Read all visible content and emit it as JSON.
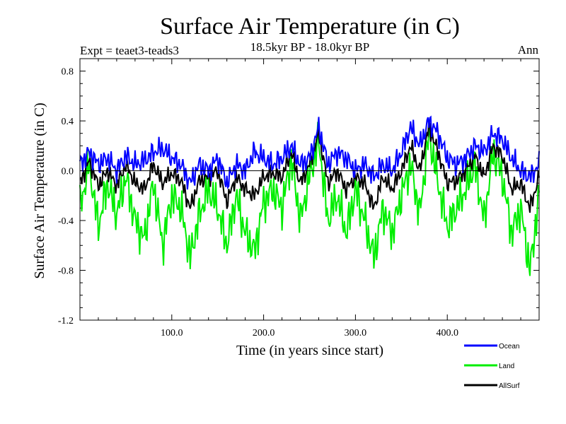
{
  "chart_data": {
    "type": "line",
    "title": "Surface Air Temperature (in C)",
    "subtitle": "18.5kyr BP - 18.0kyr BP",
    "left_label": "Expt = teaet3-teads3",
    "right_label": "Ann",
    "xlabel": "Time (in years since start)",
    "ylabel": "Surface Air Temperature (in C)",
    "xlim": [
      0,
      500
    ],
    "ylim": [
      -1.2,
      0.9
    ],
    "xticks": [
      {
        "value": 100,
        "label": "100.0"
      },
      {
        "value": 200,
        "label": "200.0"
      },
      {
        "value": 300,
        "label": "300.0"
      },
      {
        "value": 400,
        "label": "400.0"
      }
    ],
    "yticks": [
      {
        "value": 0.8,
        "label": "0.8"
      },
      {
        "value": 0.4,
        "label": "0.4"
      },
      {
        "value": 0.0,
        "label": "0.0"
      },
      {
        "value": -0.4,
        "label": "-0.4"
      },
      {
        "value": -0.8,
        "label": "-0.8"
      },
      {
        "value": -1.2,
        "label": "-1.2"
      }
    ],
    "zero_line": 0,
    "series": [
      {
        "name": "Ocean",
        "color": "#0000ff",
        "x": [
          0,
          10,
          20,
          30,
          40,
          50,
          60,
          70,
          80,
          90,
          100,
          110,
          120,
          130,
          140,
          150,
          160,
          170,
          180,
          190,
          200,
          210,
          220,
          230,
          240,
          250,
          260,
          270,
          280,
          290,
          300,
          310,
          320,
          330,
          340,
          350,
          360,
          370,
          380,
          390,
          400,
          410,
          420,
          430,
          440,
          450,
          460,
          470,
          480,
          490,
          500
        ],
        "values": [
          0.05,
          0.15,
          0.05,
          0.1,
          0.0,
          0.12,
          0.05,
          0.08,
          0.15,
          0.18,
          0.1,
          0.05,
          -0.1,
          0.05,
          0.0,
          0.1,
          -0.1,
          0.05,
          0.0,
          0.15,
          0.1,
          0.05,
          0.1,
          0.2,
          0.05,
          0.1,
          0.35,
          0.05,
          0.15,
          0.1,
          0.0,
          0.05,
          -0.05,
          0.05,
          0.0,
          0.15,
          0.35,
          0.2,
          0.4,
          0.3,
          0.1,
          0.05,
          0.1,
          0.2,
          0.15,
          0.3,
          0.25,
          0.1,
          0.0,
          -0.05,
          0.05
        ]
      },
      {
        "name": "Land",
        "color": "#00ee00",
        "x": [
          0,
          10,
          20,
          30,
          40,
          50,
          60,
          70,
          80,
          90,
          100,
          110,
          120,
          130,
          140,
          150,
          160,
          170,
          180,
          190,
          200,
          210,
          220,
          230,
          240,
          250,
          260,
          270,
          280,
          290,
          300,
          310,
          320,
          330,
          340,
          350,
          360,
          370,
          380,
          390,
          400,
          410,
          420,
          430,
          440,
          450,
          460,
          470,
          480,
          490,
          500
        ],
        "values": [
          -0.3,
          0.05,
          -0.45,
          -0.1,
          -0.35,
          -0.05,
          -0.4,
          -0.55,
          -0.1,
          -0.6,
          -0.2,
          -0.3,
          -0.7,
          -0.35,
          -0.15,
          -0.3,
          -0.6,
          -0.2,
          -0.5,
          -0.65,
          -0.25,
          -0.15,
          -0.3,
          0.1,
          -0.4,
          -0.05,
          0.25,
          -0.4,
          -0.2,
          -0.5,
          -0.15,
          -0.4,
          -0.7,
          -0.3,
          -0.5,
          -0.2,
          0.05,
          -0.35,
          0.3,
          -0.1,
          -0.45,
          -0.3,
          -0.15,
          0.05,
          -0.4,
          0.15,
          -0.05,
          -0.5,
          -0.3,
          -0.8,
          -0.2
        ]
      },
      {
        "name": "AllSurf",
        "color": "#000000",
        "x": [
          0,
          10,
          20,
          30,
          40,
          50,
          60,
          70,
          80,
          90,
          100,
          110,
          120,
          130,
          140,
          150,
          160,
          170,
          180,
          190,
          200,
          210,
          220,
          230,
          240,
          250,
          260,
          270,
          280,
          290,
          300,
          310,
          320,
          330,
          340,
          350,
          360,
          370,
          380,
          390,
          400,
          410,
          420,
          430,
          440,
          450,
          460,
          470,
          480,
          490,
          500
        ],
        "values": [
          -0.1,
          0.08,
          -0.12,
          0.0,
          -0.12,
          0.05,
          -0.1,
          -0.15,
          0.05,
          -0.1,
          -0.02,
          -0.08,
          -0.3,
          -0.08,
          -0.05,
          0.0,
          -0.25,
          -0.05,
          -0.15,
          -0.2,
          -0.05,
          -0.02,
          -0.05,
          0.15,
          -0.1,
          0.05,
          0.3,
          -0.1,
          0.0,
          -0.15,
          -0.05,
          -0.1,
          -0.3,
          -0.05,
          -0.15,
          0.0,
          0.2,
          0.0,
          0.35,
          0.15,
          -0.1,
          -0.08,
          0.0,
          0.12,
          -0.05,
          0.2,
          0.12,
          -0.15,
          -0.1,
          -0.3,
          -0.05
        ]
      }
    ],
    "legend_position": "bottom-right"
  }
}
